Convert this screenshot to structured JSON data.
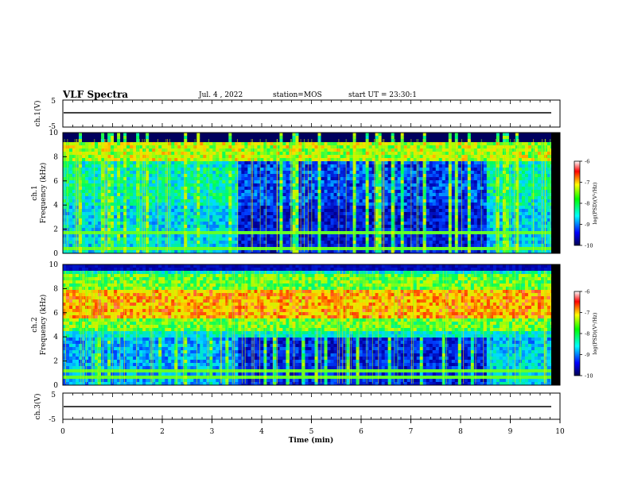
{
  "header": {
    "title": "VLF Spectra",
    "date": "Jul. 4 , 2022",
    "station": "station=MOS",
    "start_ut": "start UT = 23:30:1"
  },
  "chart_data": [
    {
      "type": "line",
      "name": "waveform-ch1",
      "ylabel": "ch.1(V)",
      "ylim": [
        -5,
        5
      ],
      "yticks": [
        "5",
        "-5"
      ],
      "series": [
        {
          "level": 0,
          "color": "#000000"
        }
      ]
    },
    {
      "type": "heatmap",
      "name": "spectrogram-ch1",
      "ylabel": "ch.1\nFrequency (kHz)",
      "ylabel_line1": "ch.1",
      "ylabel_line2": "Frequency (kHz)",
      "ylim": [
        0,
        10
      ],
      "yticks": [
        "0",
        "2",
        "4",
        "6",
        "8",
        "10"
      ],
      "colorbar": {
        "label": "log(PSD)(V²/Hz)",
        "range": [
          -10,
          -6
        ],
        "ticks": [
          "-6",
          "-7",
          "-8",
          "-9",
          "-10"
        ]
      },
      "features": {
        "noise_band_khz": [
          7.5,
          9.0
        ],
        "quiet_intervals_min": [
          [
            3.5,
            8.5
          ]
        ]
      }
    },
    {
      "type": "heatmap",
      "name": "spectrogram-ch2",
      "ylabel_line1": "ch.2",
      "ylabel_line2": "Frequency (kHz)",
      "ylim": [
        0,
        10
      ],
      "yticks": [
        "0",
        "2",
        "4",
        "6",
        "8",
        "10"
      ],
      "colorbar": {
        "label": "log(PSD)(V²/Hz)",
        "range": [
          -10,
          -6
        ],
        "ticks": [
          "-6",
          "-7",
          "-8",
          "-9",
          "-10"
        ]
      },
      "features": {
        "peak_band_khz": [
          5.5,
          8.0
        ]
      }
    },
    {
      "type": "line",
      "name": "waveform-ch3",
      "ylabel": "ch.3(V)",
      "ylim": [
        -5,
        5
      ],
      "yticks": [
        "5",
        "-5"
      ],
      "series": [
        {
          "level": 0,
          "color": "#000000"
        }
      ]
    }
  ],
  "xaxis": {
    "label": "Time (min)",
    "range": [
      0,
      10
    ],
    "ticks": [
      "0",
      "1",
      "2",
      "3",
      "4",
      "5",
      "6",
      "7",
      "8",
      "9",
      "10"
    ]
  },
  "colormap": [
    "#000000",
    "#00008c",
    "#0000ff",
    "#0080ff",
    "#00ffff",
    "#00ff80",
    "#80ff00",
    "#ffff00",
    "#ff8000",
    "#ff0000",
    "#ffffff"
  ]
}
